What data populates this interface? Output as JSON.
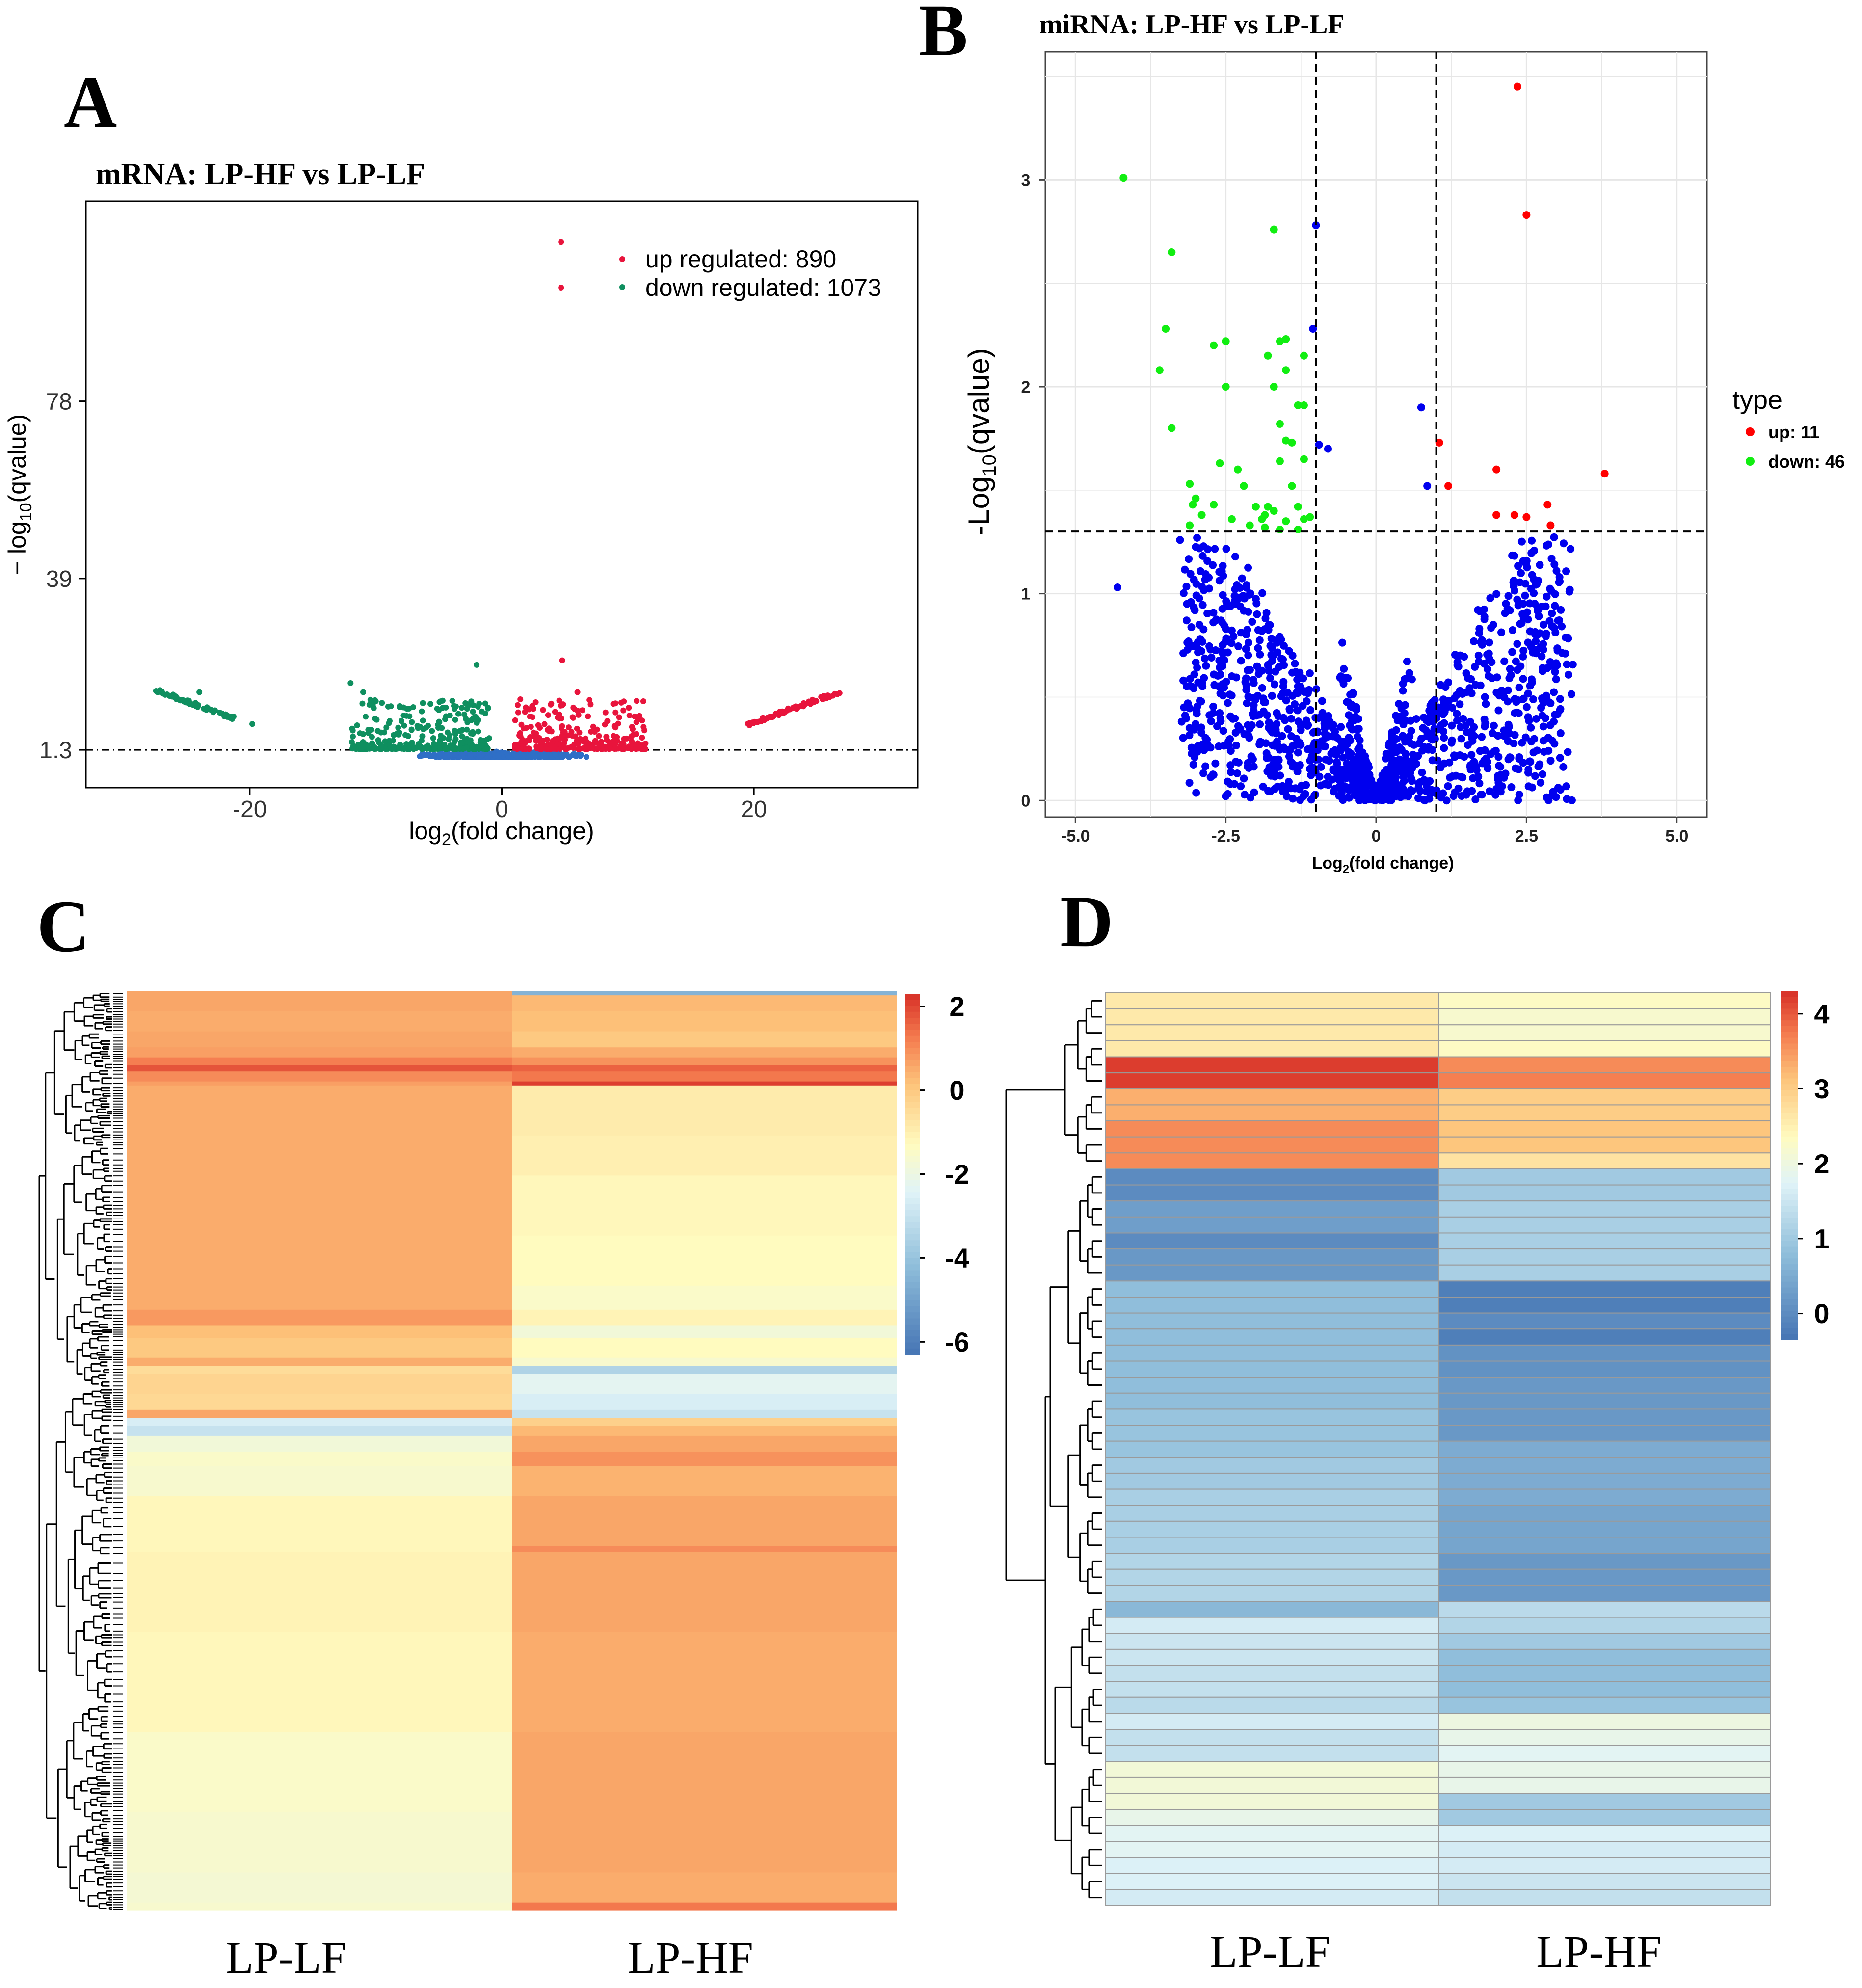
{
  "panels": {
    "A": {
      "letter": "A"
    },
    "B": {
      "letter": "B"
    },
    "C": {
      "letter": "C"
    },
    "D": {
      "letter": "D"
    }
  },
  "colors": {
    "up_a": "#e8143c",
    "down_a": "#0f8f5f",
    "ns_a": "#2f6fc6",
    "up_b": "#ff0000",
    "down_b": "#11ee11",
    "ns_b": "#0000ee",
    "heat_low": "#4a76b5",
    "heat_mid": "#fffbc0",
    "heat_high": "#d73027"
  },
  "chart_data": [
    {
      "id": "A",
      "type": "scatter",
      "title": "mRNA: LP-HF vs LP-LF",
      "xlabel_main": "log",
      "xlabel_sub": "2",
      "xlabel_rest": "(fold change)",
      "ylabel_main": "− log",
      "ylabel_sub": "10",
      "ylabel_rest": "(qvalue)",
      "xlim": [
        -33,
        33
      ],
      "ylim": [
        -7,
        122
      ],
      "x_ticks": [
        -20,
        0,
        20
      ],
      "x_tick_labels": [
        "-20",
        "0",
        "20"
      ],
      "y_ticks": [
        1.3,
        39,
        78
      ],
      "y_tick_labels": [
        "1.3",
        "39",
        "78"
      ],
      "threshold_y": 1.3,
      "legend": [
        {
          "label": "up regulated: 890",
          "series": "up"
        },
        {
          "label": "down regulated: 1073",
          "series": "down"
        }
      ],
      "outliers_up": [
        [
          4.7,
          113
        ],
        [
          4.7,
          103
        ],
        [
          4.8,
          21
        ],
        [
          6,
          14
        ]
      ],
      "outliers_down": [
        [
          -2,
          20
        ],
        [
          -12,
          16
        ],
        [
          -11,
          14
        ],
        [
          -10,
          12
        ]
      ]
    },
    {
      "id": "B",
      "type": "scatter",
      "title": "miRNA: LP-HF vs LP-LF",
      "xlabel_main": "Log",
      "xlabel_sub": "2",
      "xlabel_rest": "(fold change)",
      "ylabel_main": "-Log",
      "ylabel_sub": "10",
      "ylabel_rest": "(qvalue)",
      "xlim": [
        -5.5,
        5.5
      ],
      "ylim": [
        -0.08,
        3.62
      ],
      "x_ticks": [
        -5,
        -2.5,
        0,
        2.5,
        5
      ],
      "x_tick_labels": [
        "-5.0",
        "-2.5",
        "0",
        "2.5",
        "5.0"
      ],
      "y_ticks": [
        0,
        1,
        2,
        3
      ],
      "y_tick_labels": [
        "0",
        "1",
        "2",
        "3"
      ],
      "vlines": [
        -1,
        1
      ],
      "hline": 1.3,
      "legend_title": "type",
      "legend": [
        {
          "label": "up: 11",
          "series": "up"
        },
        {
          "label": "down: 46",
          "series": "down"
        }
      ],
      "up_points": [
        [
          2.35,
          3.45
        ],
        [
          2.5,
          2.83
        ],
        [
          3.8,
          1.58
        ],
        [
          2.0,
          1.6
        ],
        [
          1.05,
          1.73
        ],
        [
          1.2,
          1.52
        ],
        [
          2.85,
          1.43
        ],
        [
          2.3,
          1.38
        ],
        [
          2.5,
          1.37
        ],
        [
          2.0,
          1.38
        ],
        [
          2.9,
          1.33
        ]
      ],
      "down_points": [
        [
          -4.2,
          3.01
        ],
        [
          -3.4,
          2.65
        ],
        [
          -1.7,
          2.76
        ],
        [
          -3.5,
          2.28
        ],
        [
          -2.7,
          2.2
        ],
        [
          -2.5,
          2.22
        ],
        [
          -1.6,
          2.22
        ],
        [
          -1.5,
          2.23
        ],
        [
          -1.8,
          2.15
        ],
        [
          -1.2,
          2.15
        ],
        [
          -3.6,
          2.08
        ],
        [
          -1.5,
          2.08
        ],
        [
          -2.5,
          2.0
        ],
        [
          -1.7,
          2.0
        ],
        [
          -1.2,
          1.91
        ],
        [
          -1.3,
          1.91
        ],
        [
          -3.4,
          1.8
        ],
        [
          -1.6,
          1.82
        ],
        [
          -1.5,
          1.74
        ],
        [
          -1.4,
          1.73
        ],
        [
          -2.6,
          1.63
        ],
        [
          -2.3,
          1.6
        ],
        [
          -1.6,
          1.64
        ],
        [
          -1.2,
          1.65
        ],
        [
          -3.1,
          1.53
        ],
        [
          -2.2,
          1.52
        ],
        [
          -1.4,
          1.52
        ],
        [
          -3.0,
          1.46
        ],
        [
          -3.05,
          1.43
        ],
        [
          -2.7,
          1.43
        ],
        [
          -2.0,
          1.42
        ],
        [
          -1.8,
          1.42
        ],
        [
          -1.7,
          1.4
        ],
        [
          -1.3,
          1.42
        ],
        [
          -2.9,
          1.38
        ],
        [
          -2.4,
          1.36
        ],
        [
          -1.9,
          1.36
        ],
        [
          -1.5,
          1.35
        ],
        [
          -1.2,
          1.36
        ],
        [
          -1.1,
          1.37
        ],
        [
          -3.1,
          1.33
        ],
        [
          -2.1,
          1.33
        ],
        [
          -1.85,
          1.32
        ],
        [
          -1.6,
          1.31
        ],
        [
          -1.3,
          1.31
        ],
        [
          -1.85,
          1.38
        ]
      ],
      "ns_outliers": [
        [
          -4.3,
          1.03
        ],
        [
          -1.0,
          2.78
        ],
        [
          -1.05,
          2.28
        ],
        [
          0.75,
          1.9
        ],
        [
          -0.95,
          1.72
        ],
        [
          -0.8,
          1.7
        ],
        [
          0.85,
          1.52
        ]
      ]
    },
    {
      "id": "C",
      "type": "heatmap",
      "columns": [
        "LP-LF",
        "LP-HF"
      ],
      "colorbar_ticks": [
        2,
        0,
        -2,
        -4,
        -6
      ],
      "colorbar_tick_labels": [
        "2",
        "0",
        "-2",
        "-4",
        "-6"
      ],
      "vmin": -6.3,
      "vmax": 2.3,
      "bands": [
        {
          "span": 2,
          "lf": 0.6,
          "hf": -4.5
        },
        {
          "span": 8,
          "lf": 0.6,
          "hf": 0.3
        },
        {
          "span": 10,
          "lf": 0.5,
          "hf": 0.2
        },
        {
          "span": 8,
          "lf": 0.6,
          "hf": 0.0
        },
        {
          "span": 5,
          "lf": 0.7,
          "hf": 0.5
        },
        {
          "span": 4,
          "lf": 1.2,
          "hf": 0.9
        },
        {
          "span": 3,
          "lf": 1.8,
          "hf": 1.6
        },
        {
          "span": 5,
          "lf": 1.0,
          "hf": 1.3
        },
        {
          "span": 2,
          "lf": 0.7,
          "hf": 2.1
        },
        {
          "span": 25,
          "lf": 0.5,
          "hf": -0.9
        },
        {
          "span": 20,
          "lf": 0.5,
          "hf": -1.0
        },
        {
          "span": 30,
          "lf": 0.5,
          "hf": -1.2
        },
        {
          "span": 25,
          "lf": 0.5,
          "hf": -1.3
        },
        {
          "span": 12,
          "lf": 0.5,
          "hf": -1.5
        },
        {
          "span": 8,
          "lf": 0.8,
          "hf": -1.1
        },
        {
          "span": 6,
          "lf": 0.2,
          "hf": -1.8
        },
        {
          "span": 10,
          "lf": 0.0,
          "hf": -1.3
        },
        {
          "span": 4,
          "lf": 0.5,
          "hf": -1.6
        },
        {
          "span": 4,
          "lf": -0.5,
          "hf": -3.5
        },
        {
          "span": 10,
          "lf": -0.3,
          "hf": -2.3
        },
        {
          "span": 8,
          "lf": -0.4,
          "hf": -2.6
        },
        {
          "span": 4,
          "lf": 0.6,
          "hf": -3.0
        },
        {
          "span": 4,
          "lf": -2.6,
          "hf": -0.2
        },
        {
          "span": 5,
          "lf": -3.0,
          "hf": 0.3
        },
        {
          "span": 8,
          "lf": -1.8,
          "hf": 0.6
        },
        {
          "span": 7,
          "lf": -1.5,
          "hf": 0.9
        },
        {
          "span": 15,
          "lf": -1.6,
          "hf": 0.4
        },
        {
          "span": 25,
          "lf": -1.2,
          "hf": 0.6
        },
        {
          "span": 3,
          "lf": -1.2,
          "hf": 1.0
        },
        {
          "span": 40,
          "lf": -1.1,
          "hf": 0.6
        },
        {
          "span": 50,
          "lf": -1.2,
          "hf": 0.5
        },
        {
          "span": 40,
          "lf": -1.5,
          "hf": 0.6
        },
        {
          "span": 30,
          "lf": -1.6,
          "hf": 0.6
        },
        {
          "span": 15,
          "lf": -1.7,
          "hf": 0.5
        },
        {
          "span": 4,
          "lf": -1.6,
          "hf": 1.3
        }
      ]
    },
    {
      "id": "D",
      "type": "heatmap",
      "columns": [
        "LP-LF",
        "LP-HF"
      ],
      "colorbar_ticks": [
        4,
        3,
        2,
        1,
        0
      ],
      "colorbar_tick_labels": [
        "4",
        "3",
        "2",
        "1",
        "0"
      ],
      "vmin": -0.35,
      "vmax": 4.3,
      "rows": [
        {
          "lf": 2.6,
          "hf": 2.3
        },
        {
          "lf": 2.6,
          "hf": 2.2
        },
        {
          "lf": 2.6,
          "hf": 2.2
        },
        {
          "lf": 2.6,
          "hf": 2.3
        },
        {
          "lf": 4.2,
          "hf": 3.6
        },
        {
          "lf": 4.2,
          "hf": 3.7
        },
        {
          "lf": 3.3,
          "hf": 3.0
        },
        {
          "lf": 3.3,
          "hf": 3.0
        },
        {
          "lf": 3.6,
          "hf": 3.1
        },
        {
          "lf": 3.6,
          "hf": 3.1
        },
        {
          "lf": 3.6,
          "hf": 2.7
        },
        {
          "lf": 0.0,
          "hf": 1.0
        },
        {
          "lf": 0.0,
          "hf": 1.0
        },
        {
          "lf": 0.3,
          "hf": 1.1
        },
        {
          "lf": 0.3,
          "hf": 1.1
        },
        {
          "lf": 0.0,
          "hf": 1.1
        },
        {
          "lf": 0.2,
          "hf": 1.1
        },
        {
          "lf": 0.2,
          "hf": 1.1
        },
        {
          "lf": 0.8,
          "hf": -0.2
        },
        {
          "lf": 0.8,
          "hf": -0.2
        },
        {
          "lf": 0.8,
          "hf": 0.0
        },
        {
          "lf": 0.8,
          "hf": -0.2
        },
        {
          "lf": 0.8,
          "hf": 0.1
        },
        {
          "lf": 0.8,
          "hf": 0.1
        },
        {
          "lf": 0.8,
          "hf": 0.2
        },
        {
          "lf": 0.8,
          "hf": 0.2
        },
        {
          "lf": 0.9,
          "hf": 0.2
        },
        {
          "lf": 0.9,
          "hf": 0.2
        },
        {
          "lf": 0.9,
          "hf": 0.5
        },
        {
          "lf": 1.0,
          "hf": 0.5
        },
        {
          "lf": 1.0,
          "hf": 0.5
        },
        {
          "lf": 1.1,
          "hf": 0.5
        },
        {
          "lf": 1.1,
          "hf": 0.4
        },
        {
          "lf": 1.1,
          "hf": 0.4
        },
        {
          "lf": 1.1,
          "hf": 0.4
        },
        {
          "lf": 1.2,
          "hf": 0.2
        },
        {
          "lf": 1.2,
          "hf": 0.2
        },
        {
          "lf": 1.2,
          "hf": 0.2
        },
        {
          "lf": 0.7,
          "hf": 1.3
        },
        {
          "lf": 1.6,
          "hf": 1.2
        },
        {
          "lf": 1.5,
          "hf": 1.0
        },
        {
          "lf": 1.5,
          "hf": 0.8
        },
        {
          "lf": 1.4,
          "hf": 0.8
        },
        {
          "lf": 1.4,
          "hf": 0.8
        },
        {
          "lf": 1.3,
          "hf": 0.9
        },
        {
          "lf": 1.6,
          "hf": 2.0
        },
        {
          "lf": 1.4,
          "hf": 1.9
        },
        {
          "lf": 1.4,
          "hf": 1.8
        },
        {
          "lf": 2.1,
          "hf": 1.9
        },
        {
          "lf": 2.1,
          "hf": 1.9
        },
        {
          "lf": 2.1,
          "hf": 1.0
        },
        {
          "lf": 1.9,
          "hf": 1.0
        },
        {
          "lf": 1.8,
          "hf": 1.7
        },
        {
          "lf": 1.8,
          "hf": 1.6
        },
        {
          "lf": 1.7,
          "hf": 1.6
        },
        {
          "lf": 1.7,
          "hf": 1.5
        },
        {
          "lf": 1.6,
          "hf": 1.4
        }
      ]
    }
  ]
}
